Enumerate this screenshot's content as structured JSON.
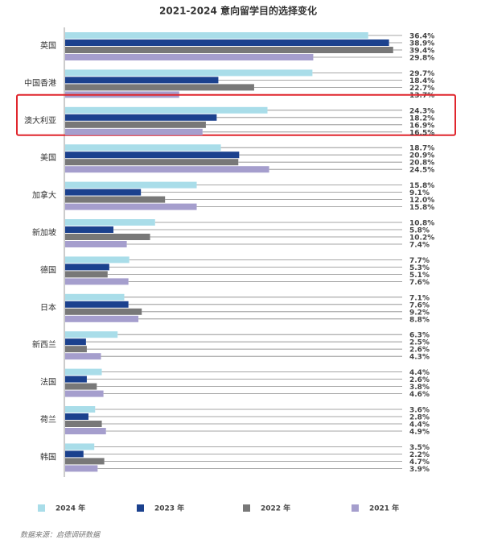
{
  "chart_data": {
    "type": "bar",
    "orientation": "horizontal",
    "title": "2021-2024 意向留学目的选择变化",
    "categories": [
      "英国",
      "中国香港",
      "澳大利亚",
      "美国",
      "加拿大",
      "新加坡",
      "德国",
      "日本",
      "新西兰",
      "法国",
      "荷兰",
      "韩国"
    ],
    "series": [
      {
        "name": "2024 年",
        "color": "#a9dde9",
        "values": [
          36.4,
          29.7,
          24.3,
          18.7,
          15.8,
          10.8,
          7.7,
          7.1,
          6.3,
          4.4,
          3.6,
          3.5
        ],
        "value_labels": [
          "36.4%",
          "29.7%",
          "24.3%",
          "18.7%",
          "15.8%",
          "10.8%",
          "7.7%",
          "7.1%",
          "6.3%",
          "4.4%",
          "3.6%",
          "3.5%"
        ]
      },
      {
        "name": "2023 年",
        "color": "#1b418e",
        "values": [
          38.9,
          18.4,
          18.2,
          20.9,
          9.1,
          5.8,
          5.3,
          7.6,
          2.5,
          2.6,
          2.8,
          2.2
        ],
        "value_labels": [
          "38.9%",
          "18.4%",
          "18.2%",
          "20.9%",
          "9.1%",
          "5.8%",
          "5.3%",
          "7.6%",
          "2.5%",
          "2.6%",
          "2.8%",
          "2.2%"
        ]
      },
      {
        "name": "2022 年",
        "color": "#787878",
        "values": [
          39.4,
          22.7,
          16.9,
          20.8,
          12.0,
          10.2,
          5.1,
          9.2,
          2.6,
          3.8,
          4.4,
          4.7
        ],
        "value_labels": [
          "39.4%",
          "22.7%",
          "16.9%",
          "20.8%",
          "12.0%",
          "10.2%",
          "5.1%",
          "9.2%",
          "2.6%",
          "3.8%",
          "4.4%",
          "4.7%"
        ]
      },
      {
        "name": "2021 年",
        "color": "#a59ecd",
        "values": [
          29.8,
          13.7,
          16.5,
          24.5,
          15.8,
          7.4,
          7.6,
          8.8,
          4.3,
          4.6,
          4.9,
          3.9
        ],
        "value_labels": [
          "29.8%",
          "13.7%",
          "16.5%",
          "24.5%",
          "15.8%",
          "7.4%",
          "7.6%",
          "8.8%",
          "4.3%",
          "4.6%",
          "4.9%",
          "3.9%"
        ]
      }
    ],
    "xlim": [
      0,
      40
    ],
    "highlight_category": "澳大利亚",
    "source": "数据来源：启德调研数据"
  }
}
